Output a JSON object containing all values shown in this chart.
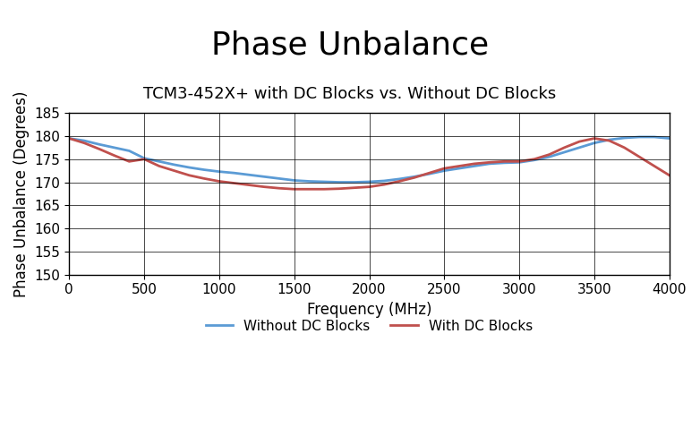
{
  "title": "Phase Unbalance",
  "subtitle": "TCM3-452X+ with DC Blocks vs. Without DC Blocks",
  "xlabel": "Frequency (MHz)",
  "ylabel": "Phase Unbalance (Degrees)",
  "xlim": [
    0,
    4000
  ],
  "ylim": [
    150,
    185
  ],
  "yticks": [
    150,
    155,
    160,
    165,
    170,
    175,
    180,
    185
  ],
  "xticks": [
    0,
    500,
    1000,
    1500,
    2000,
    2500,
    3000,
    3500,
    4000
  ],
  "without_dc_blocks_x": [
    0,
    100,
    200,
    300,
    400,
    500,
    600,
    700,
    800,
    900,
    1000,
    1100,
    1200,
    1300,
    1400,
    1500,
    1600,
    1700,
    1800,
    1900,
    2000,
    2100,
    2200,
    2300,
    2400,
    2500,
    2600,
    2700,
    2800,
    2900,
    3000,
    3100,
    3200,
    3300,
    3400,
    3500,
    3600,
    3700,
    3800,
    3900,
    4000
  ],
  "without_dc_blocks_y": [
    179.5,
    179.0,
    178.2,
    177.5,
    176.8,
    175.2,
    174.5,
    173.8,
    173.2,
    172.7,
    172.3,
    172.0,
    171.6,
    171.2,
    170.8,
    170.4,
    170.2,
    170.1,
    170.0,
    170.0,
    170.1,
    170.3,
    170.7,
    171.2,
    171.8,
    172.5,
    173.0,
    173.5,
    174.0,
    174.2,
    174.3,
    174.8,
    175.5,
    176.5,
    177.5,
    178.5,
    179.2,
    179.6,
    179.8,
    179.8,
    179.5
  ],
  "with_dc_blocks_x": [
    0,
    100,
    200,
    300,
    400,
    500,
    600,
    700,
    800,
    900,
    1000,
    1100,
    1200,
    1300,
    1400,
    1500,
    1600,
    1700,
    1800,
    1900,
    2000,
    2100,
    2200,
    2300,
    2400,
    2500,
    2600,
    2700,
    2800,
    2900,
    3000,
    3100,
    3200,
    3300,
    3400,
    3500,
    3600,
    3700,
    3800,
    3900,
    4000
  ],
  "with_dc_blocks_y": [
    179.5,
    178.5,
    177.2,
    175.8,
    174.5,
    175.0,
    173.5,
    172.5,
    171.5,
    170.8,
    170.2,
    169.8,
    169.4,
    169.0,
    168.7,
    168.5,
    168.5,
    168.5,
    168.6,
    168.8,
    169.0,
    169.5,
    170.2,
    171.0,
    172.0,
    173.0,
    173.5,
    174.0,
    174.3,
    174.5,
    174.5,
    175.0,
    176.0,
    177.5,
    178.8,
    179.5,
    179.0,
    177.5,
    175.5,
    173.5,
    171.5
  ],
  "line_color_without": "#5B9BD5",
  "line_color_with": "#C0504D",
  "line_width": 2.0,
  "background_color": "#FFFFFF",
  "legend_without": "Without DC Blocks",
  "legend_with": "With DC Blocks",
  "title_fontsize": 26,
  "subtitle_fontsize": 13,
  "axis_label_fontsize": 12,
  "tick_fontsize": 11,
  "legend_fontsize": 11
}
